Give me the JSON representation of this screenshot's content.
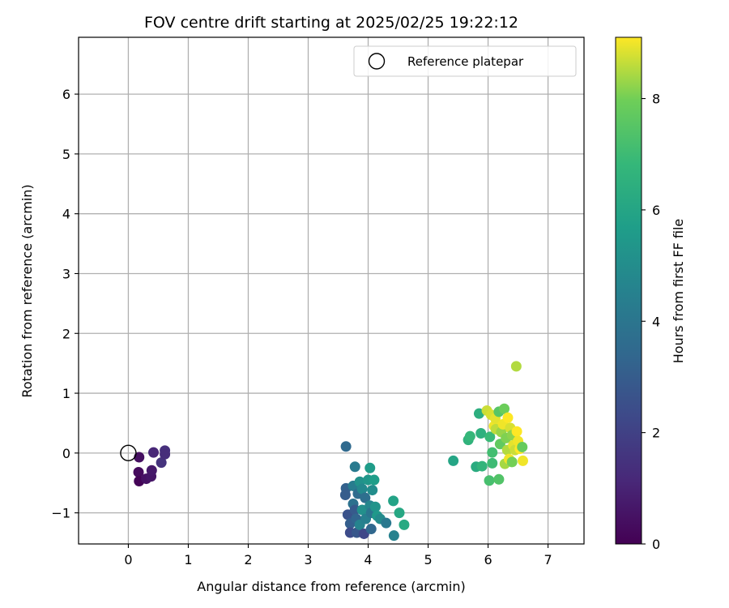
{
  "chart_data": {
    "type": "scatter",
    "title": "FOV centre drift starting at 2025/02/25 19:22:12",
    "xlabel": "Angular distance from reference (arcmin)",
    "ylabel": "Rotation from reference (arcmin)",
    "xlim": [
      -0.83,
      7.6
    ],
    "ylim": [
      -1.52,
      6.95
    ],
    "xticks": [
      0,
      1,
      2,
      3,
      4,
      5,
      6,
      7
    ],
    "yticks": [
      -1,
      0,
      1,
      2,
      3,
      4,
      5,
      6
    ],
    "grid": true,
    "legend": {
      "location": "top-right",
      "entries": [
        "Reference platepar"
      ]
    },
    "reference_point": {
      "x": 0,
      "y": 0,
      "label": "Reference platepar",
      "marker": "open-circle"
    },
    "colorbar": {
      "label": "Hours from first FF file",
      "colormap": "viridis",
      "range": [
        0,
        9.1
      ],
      "ticks": [
        0,
        2,
        4,
        6,
        8
      ]
    },
    "points": [
      {
        "x": 0.18,
        "y": -0.07,
        "h": 0.4
      },
      {
        "x": 0.17,
        "y": -0.32,
        "h": 0.3
      },
      {
        "x": 0.18,
        "y": -0.47,
        "h": 0.1
      },
      {
        "x": 0.3,
        "y": -0.43,
        "h": 0.5
      },
      {
        "x": 0.38,
        "y": -0.39,
        "h": 0.6
      },
      {
        "x": 0.39,
        "y": -0.29,
        "h": 0.7
      },
      {
        "x": 0.42,
        "y": 0.01,
        "h": 1.1
      },
      {
        "x": 0.55,
        "y": -0.16,
        "h": 1.5
      },
      {
        "x": 0.61,
        "y": 0.04,
        "h": 1.4
      },
      {
        "x": 0.61,
        "y": -0.02,
        "h": 1.3
      },
      {
        "x": 3.63,
        "y": 0.11,
        "h": 3.5
      },
      {
        "x": 3.63,
        "y": -0.59,
        "h": 3.2
      },
      {
        "x": 3.62,
        "y": -0.7,
        "h": 3.0
      },
      {
        "x": 3.66,
        "y": -1.03,
        "h": 2.6
      },
      {
        "x": 3.7,
        "y": -1.18,
        "h": 3.1
      },
      {
        "x": 3.7,
        "y": -1.33,
        "h": 2.4
      },
      {
        "x": 3.75,
        "y": -0.55,
        "h": 4.3
      },
      {
        "x": 3.75,
        "y": -0.85,
        "h": 3.8
      },
      {
        "x": 3.78,
        "y": -0.23,
        "h": 4.2
      },
      {
        "x": 3.78,
        "y": -0.95,
        "h": 2.9
      },
      {
        "x": 3.8,
        "y": -1.1,
        "h": 3.3
      },
      {
        "x": 3.81,
        "y": -1.33,
        "h": 2.8
      },
      {
        "x": 3.83,
        "y": -0.68,
        "h": 3.6
      },
      {
        "x": 3.86,
        "y": -0.48,
        "h": 5.2
      },
      {
        "x": 3.86,
        "y": -1.2,
        "h": 4.6
      },
      {
        "x": 3.9,
        "y": -0.6,
        "h": 4.8
      },
      {
        "x": 3.9,
        "y": -0.95,
        "h": 5.1
      },
      {
        "x": 3.93,
        "y": -1.35,
        "h": 2.2
      },
      {
        "x": 3.95,
        "y": -0.75,
        "h": 3.7
      },
      {
        "x": 3.96,
        "y": -1.1,
        "h": 4.4
      },
      {
        "x": 4.0,
        "y": -0.45,
        "h": 5.4
      },
      {
        "x": 4.03,
        "y": -0.25,
        "h": 5.6
      },
      {
        "x": 4.03,
        "y": -0.88,
        "h": 4.7
      },
      {
        "x": 4.05,
        "y": -1.0,
        "h": 4.0
      },
      {
        "x": 4.05,
        "y": -1.27,
        "h": 3.4
      },
      {
        "x": 4.07,
        "y": -0.62,
        "h": 5.0
      },
      {
        "x": 4.1,
        "y": -0.45,
        "h": 5.7
      },
      {
        "x": 4.12,
        "y": -0.9,
        "h": 5.3
      },
      {
        "x": 4.15,
        "y": -1.05,
        "h": 5.5
      },
      {
        "x": 4.2,
        "y": -1.1,
        "h": 4.9
      },
      {
        "x": 4.3,
        "y": -1.17,
        "h": 4.1
      },
      {
        "x": 4.42,
        "y": -0.8,
        "h": 5.9
      },
      {
        "x": 4.43,
        "y": -1.38,
        "h": 4.5
      },
      {
        "x": 4.52,
        "y": -1.0,
        "h": 6.1
      },
      {
        "x": 4.6,
        "y": -1.2,
        "h": 6.2
      },
      {
        "x": 5.42,
        "y": -0.13,
        "h": 6.0
      },
      {
        "x": 5.67,
        "y": 0.22,
        "h": 6.6
      },
      {
        "x": 5.7,
        "y": 0.28,
        "h": 6.8
      },
      {
        "x": 5.8,
        "y": -0.23,
        "h": 6.3
      },
      {
        "x": 5.85,
        "y": 0.66,
        "h": 6.4
      },
      {
        "x": 5.88,
        "y": 0.33,
        "h": 6.5
      },
      {
        "x": 5.9,
        "y": -0.22,
        "h": 6.7
      },
      {
        "x": 5.98,
        "y": 0.71,
        "h": 8.7
      },
      {
        "x": 6.02,
        "y": -0.46,
        "h": 7.2
      },
      {
        "x": 6.03,
        "y": 0.27,
        "h": 6.9
      },
      {
        "x": 6.05,
        "y": 0.64,
        "h": 8.8
      },
      {
        "x": 6.07,
        "y": 0.01,
        "h": 7.1
      },
      {
        "x": 6.07,
        "y": -0.17,
        "h": 7.0
      },
      {
        "x": 6.1,
        "y": 0.45,
        "h": 9.0
      },
      {
        "x": 6.12,
        "y": 0.58,
        "h": 8.9
      },
      {
        "x": 6.13,
        "y": 0.4,
        "h": 8.6
      },
      {
        "x": 6.18,
        "y": 0.69,
        "h": 7.5
      },
      {
        "x": 6.18,
        "y": -0.44,
        "h": 7.4
      },
      {
        "x": 6.2,
        "y": 0.15,
        "h": 7.7
      },
      {
        "x": 6.22,
        "y": 0.35,
        "h": 8.3
      },
      {
        "x": 6.25,
        "y": 0.48,
        "h": 9.0
      },
      {
        "x": 6.27,
        "y": 0.74,
        "h": 7.9
      },
      {
        "x": 6.28,
        "y": -0.18,
        "h": 8.4
      },
      {
        "x": 6.3,
        "y": 0.25,
        "h": 8.1
      },
      {
        "x": 6.32,
        "y": 0.05,
        "h": 8.5
      },
      {
        "x": 6.33,
        "y": 0.59,
        "h": 9.1
      },
      {
        "x": 6.35,
        "y": -0.1,
        "h": 9.0
      },
      {
        "x": 6.37,
        "y": 0.42,
        "h": 8.8
      },
      {
        "x": 6.4,
        "y": -0.15,
        "h": 8.0
      },
      {
        "x": 6.4,
        "y": 0.3,
        "h": 8.2
      },
      {
        "x": 6.42,
        "y": 0.13,
        "h": 8.9
      },
      {
        "x": 6.45,
        "y": 0.05,
        "h": 8.7
      },
      {
        "x": 6.47,
        "y": 1.45,
        "h": 8.5
      },
      {
        "x": 6.48,
        "y": 0.36,
        "h": 9.1
      },
      {
        "x": 6.5,
        "y": 0.2,
        "h": 9.0
      },
      {
        "x": 6.53,
        "y": 0.07,
        "h": 9.1
      },
      {
        "x": 6.57,
        "y": 0.1,
        "h": 7.8
      },
      {
        "x": 6.58,
        "y": -0.13,
        "h": 9.0
      }
    ]
  }
}
